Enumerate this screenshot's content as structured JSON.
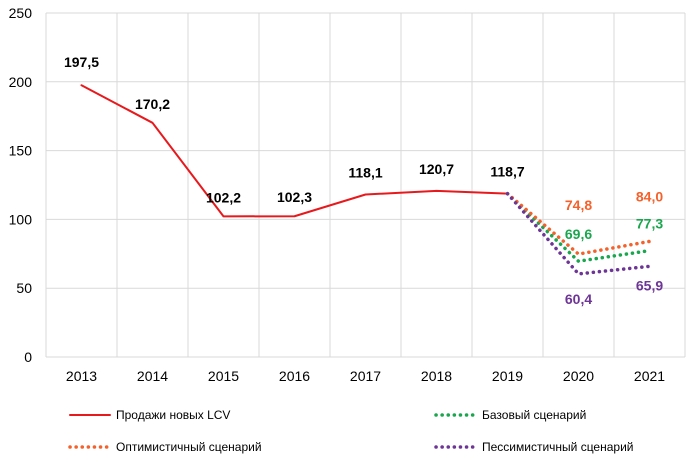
{
  "chart_data": {
    "type": "line",
    "title": "",
    "xlabel": "",
    "ylabel": "",
    "ylim": [
      0,
      250
    ],
    "yticks": [
      0,
      50,
      100,
      150,
      200,
      250
    ],
    "categories": [
      "2013",
      "2014",
      "2015",
      "2016",
      "2017",
      "2018",
      "2019",
      "2020",
      "2021"
    ],
    "grid": true,
    "legend_position": "bottom",
    "series": [
      {
        "name": "Продажи новых LCV",
        "style": "solid",
        "color": "#e8191d",
        "x": [
          "2013",
          "2014",
          "2015",
          "2016",
          "2017",
          "2018",
          "2019"
        ],
        "values": [
          197.5,
          170.2,
          102.2,
          102.3,
          118.1,
          120.7,
          118.7
        ],
        "labels": [
          "197,5",
          "170,2",
          "102,2",
          "102,3",
          "118,1",
          "120,7",
          "118,7"
        ],
        "label_color": "#000000"
      },
      {
        "name": "Базовый сценарий",
        "style": "dotted",
        "color": "#1aa64e",
        "x": [
          "2019",
          "2020",
          "2021"
        ],
        "values": [
          118.7,
          69.6,
          77.3
        ],
        "labels": [
          "",
          "69,6",
          "77,3"
        ],
        "label_color": "#1aa64e"
      },
      {
        "name": "Оптимистичный сценарий",
        "style": "dotted",
        "color": "#f4612b",
        "x": [
          "2019",
          "2020",
          "2021"
        ],
        "values": [
          118.7,
          74.8,
          84.0
        ],
        "labels": [
          "",
          "74,8",
          "84,0"
        ],
        "label_color": "#f4612b"
      },
      {
        "name": "Пессимистичный сценарий",
        "style": "dotted",
        "color": "#6d3595",
        "x": [
          "2019",
          "2020",
          "2021"
        ],
        "values": [
          118.7,
          60.4,
          65.9
        ],
        "labels": [
          "",
          "60,4",
          "65,9"
        ],
        "label_color": "#6d3595"
      }
    ]
  }
}
